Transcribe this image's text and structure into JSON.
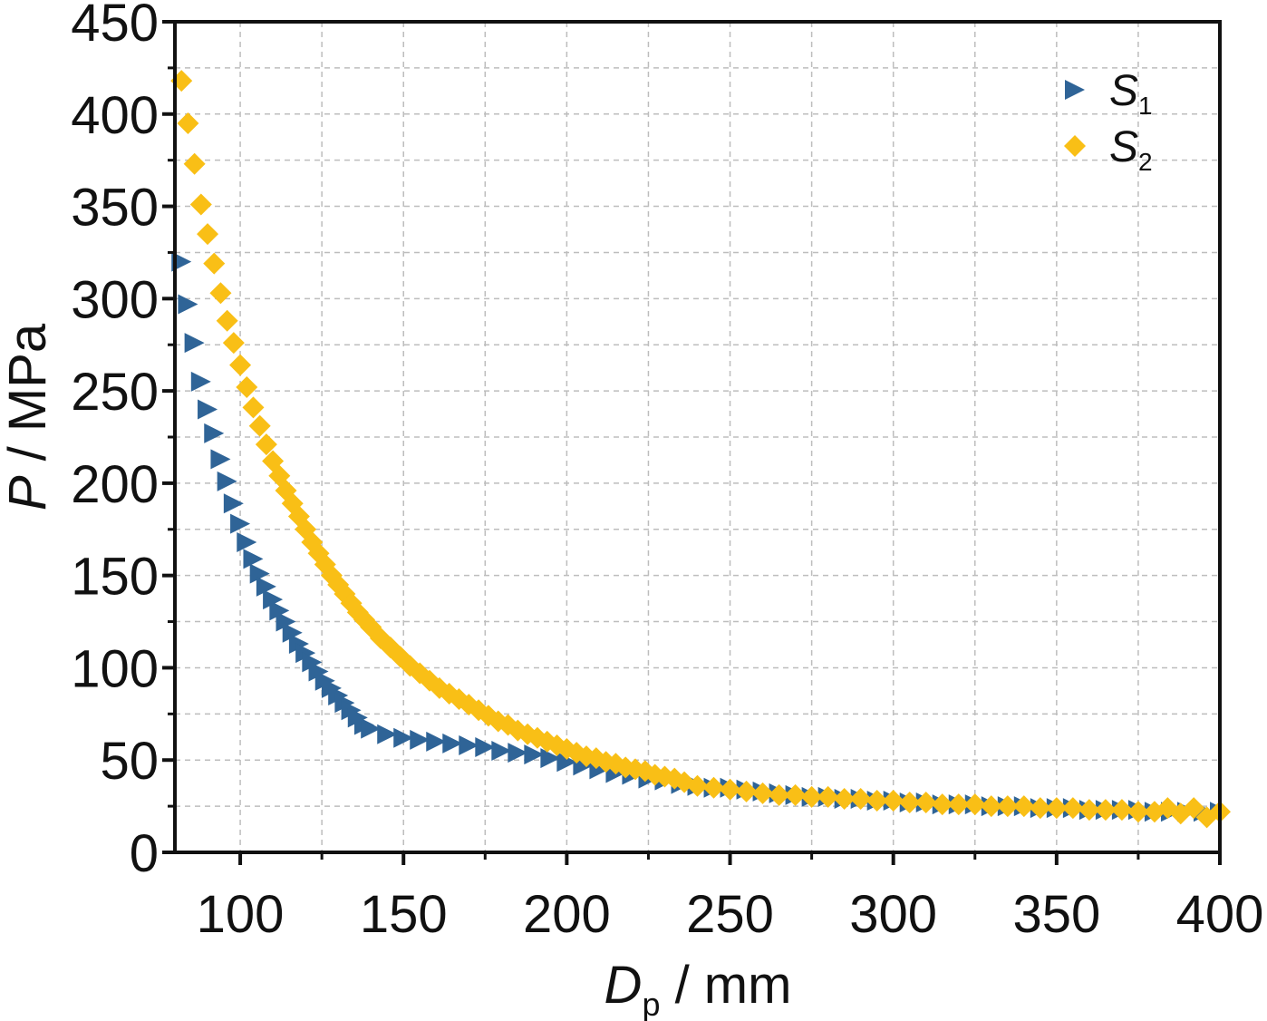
{
  "chart_data": {
    "type": "scatter",
    "xlabel": {
      "main": "D",
      "sub": "p",
      "rest": " / mm"
    },
    "ylabel": {
      "main": "P",
      "rest": " / MPa"
    },
    "xlim": [
      80,
      400
    ],
    "ylim": [
      0,
      450
    ],
    "xticks": [
      100,
      150,
      200,
      250,
      300,
      350,
      400
    ],
    "yticks": [
      0,
      50,
      100,
      150,
      200,
      250,
      300,
      350,
      400,
      450
    ],
    "grid": true,
    "legend_position": "top-right",
    "series": [
      {
        "name": "S",
        "name_sub": "1",
        "marker": "triangle-right",
        "color": "#2f6497",
        "x": [
          82,
          84,
          86,
          88,
          90,
          92,
          94,
          96,
          98,
          100,
          102,
          104,
          106,
          108,
          110,
          112,
          114,
          116,
          118,
          120,
          122,
          124,
          126,
          128,
          130,
          132,
          134,
          136,
          138,
          140,
          145,
          150,
          155,
          160,
          165,
          170,
          175,
          180,
          185,
          190,
          195,
          200,
          205,
          210,
          215,
          220,
          225,
          230,
          235,
          240,
          245,
          250,
          255,
          260,
          265,
          270,
          275,
          280,
          285,
          290,
          295,
          300,
          305,
          310,
          315,
          320,
          325,
          330,
          335,
          340,
          345,
          350,
          355,
          360,
          365,
          370,
          375,
          380,
          385,
          390,
          395,
          400
        ],
        "y": [
          320,
          297,
          276,
          255,
          240,
          227,
          213,
          201,
          189,
          178,
          168,
          159,
          151,
          144,
          137,
          131,
          125,
          119,
          113,
          108,
          103,
          98,
          93,
          89,
          85,
          81,
          77,
          73,
          69,
          67,
          64,
          62,
          61,
          60,
          59,
          58,
          57,
          55,
          54,
          53,
          51,
          49,
          47,
          45,
          43,
          42,
          40,
          39,
          37,
          36,
          35,
          35,
          34,
          33,
          32,
          31,
          30,
          30,
          29,
          29,
          28,
          28,
          27,
          27,
          26,
          26,
          26,
          25,
          25,
          25,
          24,
          24,
          24,
          23,
          23,
          23,
          23,
          22,
          22,
          22,
          22,
          22
        ]
      },
      {
        "name": "S",
        "name_sub": "2",
        "marker": "diamond",
        "color": "#f9bf16",
        "x": [
          82,
          84,
          86,
          88,
          90,
          92,
          94,
          96,
          98,
          100,
          102,
          104,
          106,
          108,
          110,
          112,
          114,
          116,
          118,
          120,
          122,
          124,
          126,
          128,
          130,
          132,
          134,
          136,
          138,
          140,
          143,
          146,
          149,
          152,
          155,
          158,
          161,
          164,
          167,
          170,
          173,
          176,
          179,
          182,
          185,
          188,
          191,
          194,
          197,
          200,
          203,
          206,
          209,
          212,
          215,
          218,
          221,
          224,
          227,
          230,
          233,
          236,
          240,
          245,
          250,
          255,
          260,
          265,
          270,
          275,
          280,
          285,
          290,
          295,
          300,
          305,
          310,
          315,
          320,
          325,
          330,
          335,
          340,
          345,
          350,
          355,
          360,
          365,
          370,
          375,
          380,
          384,
          388,
          392,
          396,
          400
        ],
        "y": [
          418,
          395,
          373,
          351,
          335,
          319,
          303,
          288,
          276,
          264,
          252,
          241,
          231,
          221,
          212,
          204,
          196,
          189,
          182,
          175,
          168,
          162,
          156,
          150,
          145,
          140,
          135,
          130,
          126,
          122,
          116,
          111,
          106,
          101,
          97,
          93,
          89,
          86,
          83,
          80,
          77,
          74,
          71,
          69,
          66,
          64,
          62,
          60,
          58,
          56,
          54,
          52,
          51,
          49,
          48,
          46,
          45,
          44,
          42,
          41,
          40,
          38,
          36,
          35,
          34,
          33,
          32,
          31,
          31,
          30,
          30,
          29,
          29,
          28,
          28,
          27,
          27,
          26,
          26,
          26,
          25,
          25,
          25,
          24,
          24,
          24,
          23,
          23,
          23,
          22,
          22,
          24,
          21,
          24,
          19,
          22
        ]
      }
    ]
  }
}
